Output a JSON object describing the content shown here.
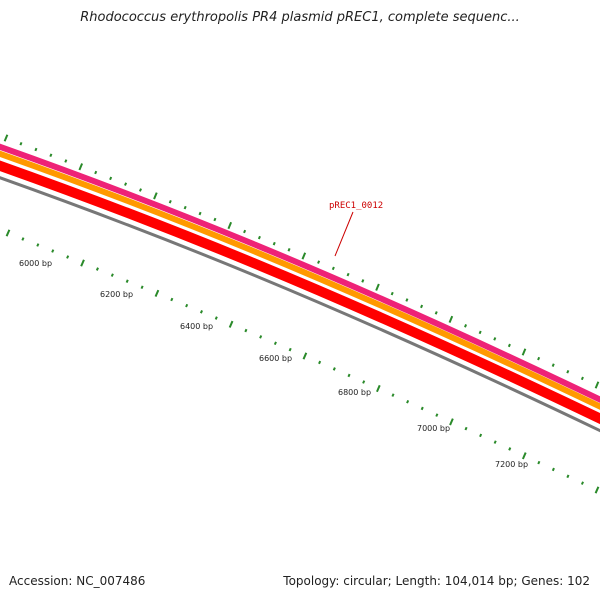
{
  "title": "Rhodococcus erythropolis PR4 plasmid pREC1, complete sequenc...",
  "footer": {
    "accession": "Accession: NC_007486",
    "summary": "Topology: circular; Length: 104,014 bp; Genes: 102"
  },
  "gene_label": "pREC1_0012",
  "bp_labels": [
    "6000 bp",
    "6200 bp",
    "6400 bp",
    "6600 bp",
    "6800 bp",
    "7000 bp",
    "7200 bp"
  ],
  "colors": {
    "track_magenta": "#ee2277",
    "track_orange": "#ff9900",
    "track_red": "#ff0000",
    "track_gray": "#777777",
    "tick": "#2a8a2a",
    "gene_label": "#cc0000"
  }
}
